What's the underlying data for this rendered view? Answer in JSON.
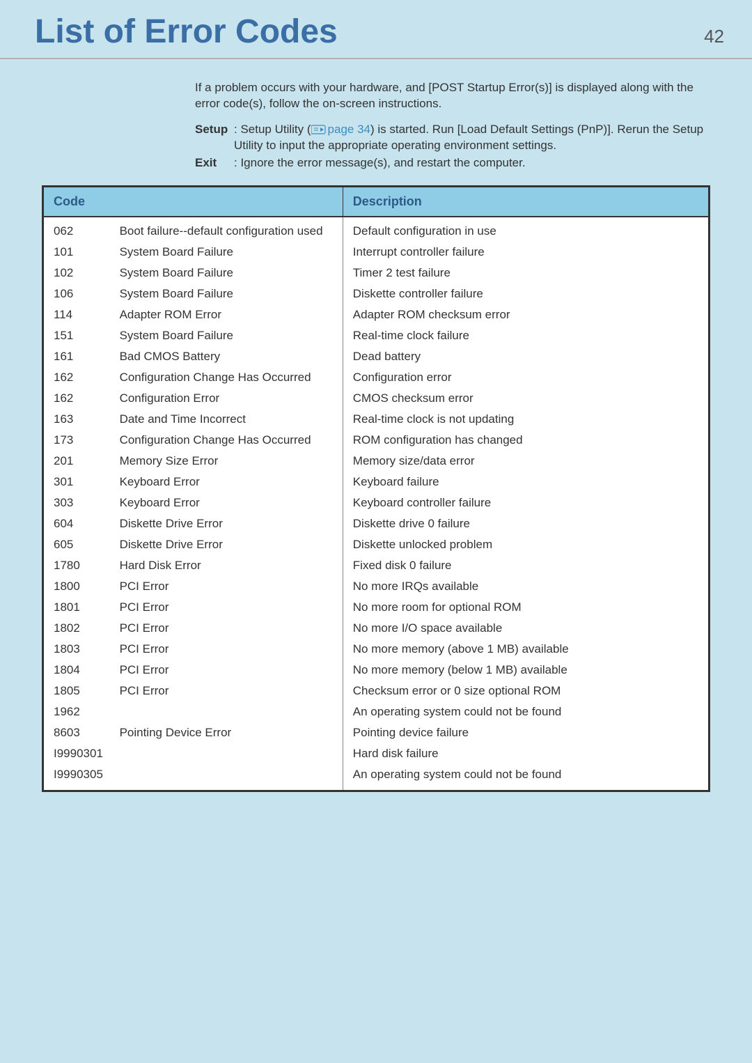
{
  "header": {
    "title": "List of Error Codes",
    "page_number": "42"
  },
  "intro": {
    "paragraph": "If a problem occurs with your hardware, and [POST Startup Error(s)] is displayed along with the error code(s), follow the on-screen instructions.",
    "setup_label": "Setup",
    "setup_text_pre": ": Setup Utility (",
    "setup_page_ref": "page 34",
    "setup_text_post": ") is started.  Run [Load Default Settings (PnP)]. Rerun the Setup Utility to input the appropriate operating environment settings.",
    "exit_label": "Exit",
    "exit_text": ": Ignore the error message(s), and restart the computer."
  },
  "table": {
    "header_code": "Code",
    "header_desc": "Description",
    "rows": [
      {
        "code": "062",
        "msg": "Boot failure--default configuration used",
        "desc": "Default configuration in use"
      },
      {
        "code": "101",
        "msg": "System Board Failure",
        "desc": "Interrupt controller failure"
      },
      {
        "code": "102",
        "msg": "System Board Failure",
        "desc": "Timer 2 test failure"
      },
      {
        "code": "106",
        "msg": "System Board Failure",
        "desc": "Diskette controller failure"
      },
      {
        "code": "114",
        "msg": "Adapter ROM Error",
        "desc": "Adapter ROM checksum error"
      },
      {
        "code": "151",
        "msg": "System Board Failure",
        "desc": "Real-time clock failure"
      },
      {
        "code": "161",
        "msg": "Bad CMOS Battery",
        "desc": "Dead battery"
      },
      {
        "code": "162",
        "msg": "Configuration Change Has Occurred",
        "desc": "Configuration error"
      },
      {
        "code": "162",
        "msg": "Configuration Error",
        "desc": "CMOS checksum error"
      },
      {
        "code": "163",
        "msg": "Date and Time Incorrect",
        "desc": "Real-time clock is not updating"
      },
      {
        "code": "173",
        "msg": "Configuration Change Has Occurred",
        "desc": "ROM configuration has changed"
      },
      {
        "code": "201",
        "msg": "Memory Size Error",
        "desc": "Memory size/data error"
      },
      {
        "code": "301",
        "msg": "Keyboard Error",
        "desc": "Keyboard failure"
      },
      {
        "code": "303",
        "msg": "Keyboard Error",
        "desc": "Keyboard controller failure"
      },
      {
        "code": "604",
        "msg": "Diskette Drive Error",
        "desc": "Diskette drive 0 failure"
      },
      {
        "code": "605",
        "msg": "Diskette Drive Error",
        "desc": "Diskette unlocked problem"
      },
      {
        "code": "1780",
        "msg": "Hard Disk Error",
        "desc": "Fixed disk 0 failure"
      },
      {
        "code": "1800",
        "msg": "PCI Error",
        "desc": "No more IRQs available"
      },
      {
        "code": "1801",
        "msg": "PCI Error",
        "desc": "No more room for optional ROM"
      },
      {
        "code": "1802",
        "msg": "PCI Error",
        "desc": "No more I/O space available"
      },
      {
        "code": "1803",
        "msg": "PCI Error",
        "desc": "No more memory (above 1 MB) available"
      },
      {
        "code": "1804",
        "msg": "PCI Error",
        "desc": "No more memory (below 1 MB) available"
      },
      {
        "code": "1805",
        "msg": "PCI Error",
        "desc": "Checksum error or 0 size optional ROM"
      },
      {
        "code": "1962",
        "msg": "",
        "desc": "An operating system could not be found"
      },
      {
        "code": "8603",
        "msg": "Pointing Device Error",
        "desc": "Pointing device failure"
      },
      {
        "code": "I9990301",
        "msg": "",
        "desc": "Hard disk failure"
      },
      {
        "code": "I9990305",
        "msg": "",
        "desc": "An operating system could not be found"
      }
    ]
  },
  "colors": {
    "page_bg": "#c7e3ed",
    "title_color": "#3a6ea5",
    "table_header_bg": "#8fcce6",
    "table_header_text": "#2e5a8a",
    "link_color": "#3a8fbf",
    "border_color": "#333333"
  }
}
